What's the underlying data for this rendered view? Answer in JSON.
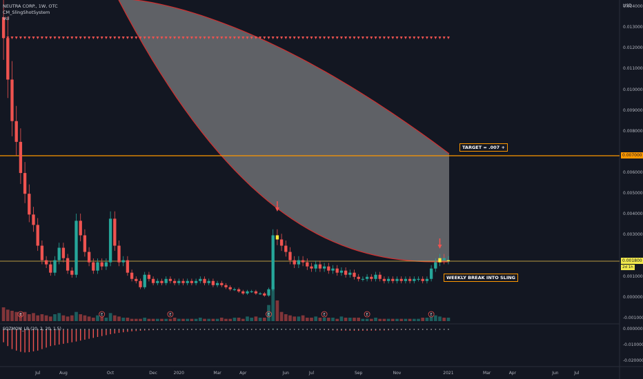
{
  "header": {
    "symbol": "NEUTRA CORP., 1W, OTC",
    "indicator": "CM_SlingShotSystem",
    "volume": "Vol"
  },
  "colors": {
    "background": "#131722",
    "up": "#26a69a",
    "down": "#ef5350",
    "target_line": "#ff9800",
    "current_line": "#f2c94c",
    "channel_fill": "#9e9e9e",
    "channel_edge": "#d32f2f",
    "signal_yellow": "#ffeb3b"
  },
  "chart_data": [
    {
      "type": "candlestick",
      "title": "NEUTRA CORP., 1W, OTC",
      "unit": "USD",
      "y_axis_ticks": [
        "0.014000",
        "0.013000",
        "0.012000",
        "0.011000",
        "0.010000",
        "0.009000",
        "0.008000",
        "0.006000",
        "0.005000",
        "0.004000",
        "0.003000",
        "0.001000",
        "0.000000",
        "-0.001000"
      ],
      "x_axis_ticks": [
        "Jul",
        "Aug",
        "Oct",
        "Dec",
        "2020",
        "Mar",
        "Apr",
        "Jun",
        "Jul",
        "Sep",
        "Nov",
        "2021",
        "Mar",
        "Apr",
        "Jun",
        "Jul"
      ],
      "price_labels": {
        "target": "0.007000",
        "current": "0.001800",
        "countdown": "2d 1h"
      },
      "close": [
        0.0125,
        0.0105,
        0.0085,
        0.0075,
        0.006,
        0.005,
        0.004,
        0.0035,
        0.0025,
        0.0018,
        0.0016,
        0.0012,
        0.0018,
        0.0024,
        0.0019,
        0.0013,
        0.0011,
        0.0037,
        0.003,
        0.0022,
        0.0017,
        0.0013,
        0.0017,
        0.0015,
        0.0017,
        0.0038,
        0.0025,
        0.0017,
        0.0018,
        0.0012,
        0.0009,
        0.0008,
        0.0005,
        0.0011,
        0.0009,
        0.0007,
        0.0008,
        0.0007,
        0.0009,
        0.0008,
        0.0007,
        0.0008,
        0.0007,
        0.0008,
        0.0007,
        0.0008,
        0.0009,
        0.0007,
        0.0008,
        0.0006,
        0.0007,
        0.0006,
        0.0005,
        0.0004,
        0.0004,
        0.0003,
        0.0002,
        0.0003,
        0.0003,
        0.0002,
        0.0002,
        0.0001,
        0.0004,
        0.003,
        0.0028,
        0.0025,
        0.0022,
        0.0018,
        0.0016,
        0.0018,
        0.0017,
        0.0015,
        0.0014,
        0.0016,
        0.0014,
        0.0015,
        0.0013,
        0.0014,
        0.0012,
        0.0013,
        0.0011,
        0.0012,
        0.001,
        0.0009,
        0.0009,
        0.001,
        0.0009,
        0.0011,
        0.0009,
        0.0008,
        0.0009,
        0.0008,
        0.0009,
        0.0008,
        0.0009,
        0.0008,
        0.0009,
        0.0009,
        0.0008,
        0.0009,
        0.0014,
        0.0017,
        0.0019,
        0.0018,
        0.0018
      ],
      "signals": {
        "entry_candle": 64,
        "arrow_candles": [
          64,
          102
        ]
      },
      "annotations": [
        "TARGET = .007 +",
        "WEEKLY BREAK INTO SLING"
      ]
    },
    {
      "type": "bar",
      "title": "Vol",
      "values": [
        12,
        10,
        9,
        8,
        7,
        8,
        6,
        7,
        5,
        6,
        5,
        4,
        6,
        7,
        5,
        4,
        5,
        8,
        6,
        5,
        4,
        3,
        5,
        4,
        3,
        7,
        5,
        4,
        3,
        3,
        2,
        2,
        2,
        3,
        2,
        2,
        2,
        2,
        2,
        2,
        3,
        2,
        2,
        2,
        2,
        2,
        3,
        2,
        2,
        2,
        2,
        3,
        2,
        2,
        3,
        3,
        2,
        4,
        3,
        4,
        3,
        3,
        14,
        30,
        18,
        8,
        6,
        5,
        4,
        4,
        5,
        3,
        3,
        4,
        3,
        3,
        3,
        3,
        2,
        4,
        3,
        3,
        3,
        3,
        2,
        2,
        2,
        3,
        2,
        2,
        2,
        2,
        2,
        2,
        2,
        2,
        2,
        2,
        3,
        3,
        4,
        5,
        4,
        3,
        3
      ]
    },
    {
      "type": "bar",
      "title": "SQZMOM_LB (20, 2, 20, 1.5)",
      "y_axis_ticks": [
        "0.000000",
        "-0.010000",
        "-0.020000"
      ],
      "values": [
        -0.0085,
        -0.011,
        -0.013,
        -0.014,
        -0.0148,
        -0.0152,
        -0.015,
        -0.0145,
        -0.014,
        -0.013,
        -0.012,
        -0.011,
        -0.0105,
        -0.01,
        -0.0095,
        -0.009,
        -0.0085,
        -0.008,
        -0.0074,
        -0.0068,
        -0.0062,
        -0.0056,
        -0.005,
        -0.0044,
        -0.0038,
        -0.0032,
        -0.0027,
        -0.0023,
        -0.0019,
        -0.0016,
        -0.0013,
        -0.0011,
        -0.0009,
        -0.0007,
        -0.0006,
        -0.0005,
        -0.0004,
        -0.0003,
        -0.0003,
        -0.0002,
        -0.0002,
        -0.0002,
        -0.0001,
        -0.0001,
        -0.0001,
        -0.0001,
        -0.0001,
        -0.0001,
        -0.0001,
        -0.0001,
        -0.0001,
        -0.0001,
        -0.0001,
        -0.0001,
        -0.0001,
        -0.0001,
        -0.0001,
        -0.0001,
        -0.0001,
        -0.0001,
        -0.0001,
        -0.0001,
        0.0002,
        0.0006,
        0.0005,
        0.0004,
        0.0003,
        0.0002,
        0.0001,
        0.0001,
        0.0001,
        0.0001,
        -0.0001,
        -0.0002,
        -0.0003,
        -0.0004,
        -0.0005,
        -0.0006,
        -0.0007,
        -0.0008,
        -0.0008,
        -0.0009,
        -0.0009,
        -0.0009,
        -0.0009,
        -0.0009,
        -0.0008,
        -0.0008,
        -0.0007,
        -0.0007,
        -0.0006,
        -0.0005,
        -0.0005,
        -0.0004,
        -0.0004,
        -0.0003,
        -0.0003,
        -0.0002,
        -0.0002,
        -0.0001,
        -0.0001,
        0.0001,
        0.0002,
        0.0002,
        0.0002
      ]
    }
  ]
}
